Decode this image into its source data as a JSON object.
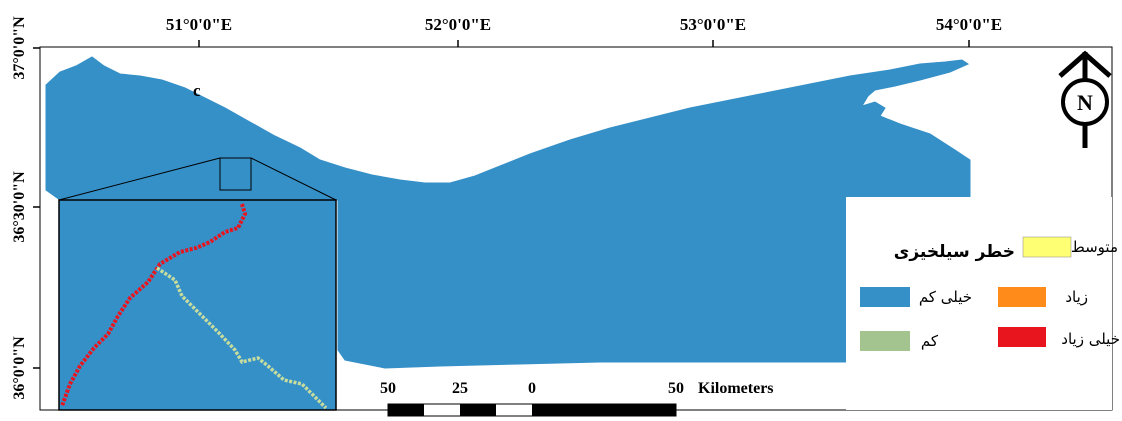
{
  "panel_label": "c",
  "longitude_labels": [
    "51°0'0\"E",
    "52°0'0\"E",
    "53°0'0\"E",
    "54°0'0\"E"
  ],
  "latitude_labels": [
    "37°0'0\"N",
    "36°30'0\"N",
    "36°0'0\"N"
  ],
  "north_arrow": {
    "letter": "N",
    "icon": "north-arrow-icon"
  },
  "legend": {
    "title": "خطر سیلخیزی",
    "items": [
      {
        "label": "خیلی کم",
        "color": "#3690c8"
      },
      {
        "label": "کم",
        "color": "#a3c48f"
      },
      {
        "label": "متوسط",
        "color": "#ffff73"
      },
      {
        "label": "زیاد",
        "color": "#ff8c1a"
      },
      {
        "label": "خیلی زیاد",
        "color": "#e8141e"
      }
    ]
  },
  "scale_bar": {
    "labels": [
      "50",
      "25",
      "0",
      "50"
    ],
    "unit": "Kilometers"
  },
  "colors": {
    "map_fill": "#3690c8",
    "inset_red": "#e8141e",
    "inset_green": "#c7dd9e"
  }
}
